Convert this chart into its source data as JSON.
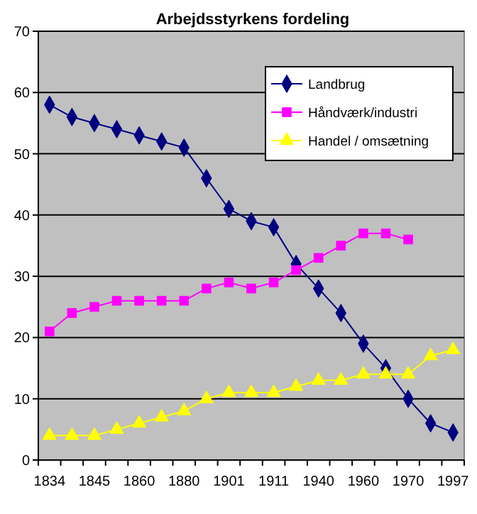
{
  "chart_data": {
    "type": "line",
    "title": "Arbejdsstyrkens fordeling",
    "categories": [
      "1834",
      null,
      "1845",
      null,
      "1860",
      null,
      "1880",
      null,
      "1901",
      null,
      "1911",
      null,
      "1940",
      null,
      "1960",
      null,
      "1970",
      null,
      "1997"
    ],
    "series": [
      {
        "name": "Landbrug",
        "color": "#000080",
        "marker": "diamond",
        "values": [
          58,
          56,
          55,
          54,
          53,
          52,
          51,
          46,
          41,
          39,
          38,
          32,
          28,
          24,
          19,
          15,
          10,
          6,
          4.5
        ]
      },
      {
        "name": "Håndværk/industri",
        "color": "#ff00ff",
        "marker": "square",
        "values": [
          21,
          24,
          25,
          26,
          26,
          26,
          26,
          28,
          29,
          28,
          29,
          31,
          33,
          35,
          37,
          37,
          36,
          null,
          null
        ]
      },
      {
        "name": "Handel / omsætning",
        "color": "#ffff00",
        "marker": "triangle",
        "values": [
          4,
          4,
          4,
          5,
          6,
          7,
          8,
          10,
          11,
          11,
          11,
          12,
          13,
          13,
          14,
          14,
          14,
          17,
          18
        ]
      }
    ],
    "ylim": [
      0,
      70
    ],
    "yticks": [
      0,
      10,
      20,
      30,
      40,
      50,
      60,
      70
    ],
    "grid": "y",
    "legend": "top right"
  }
}
